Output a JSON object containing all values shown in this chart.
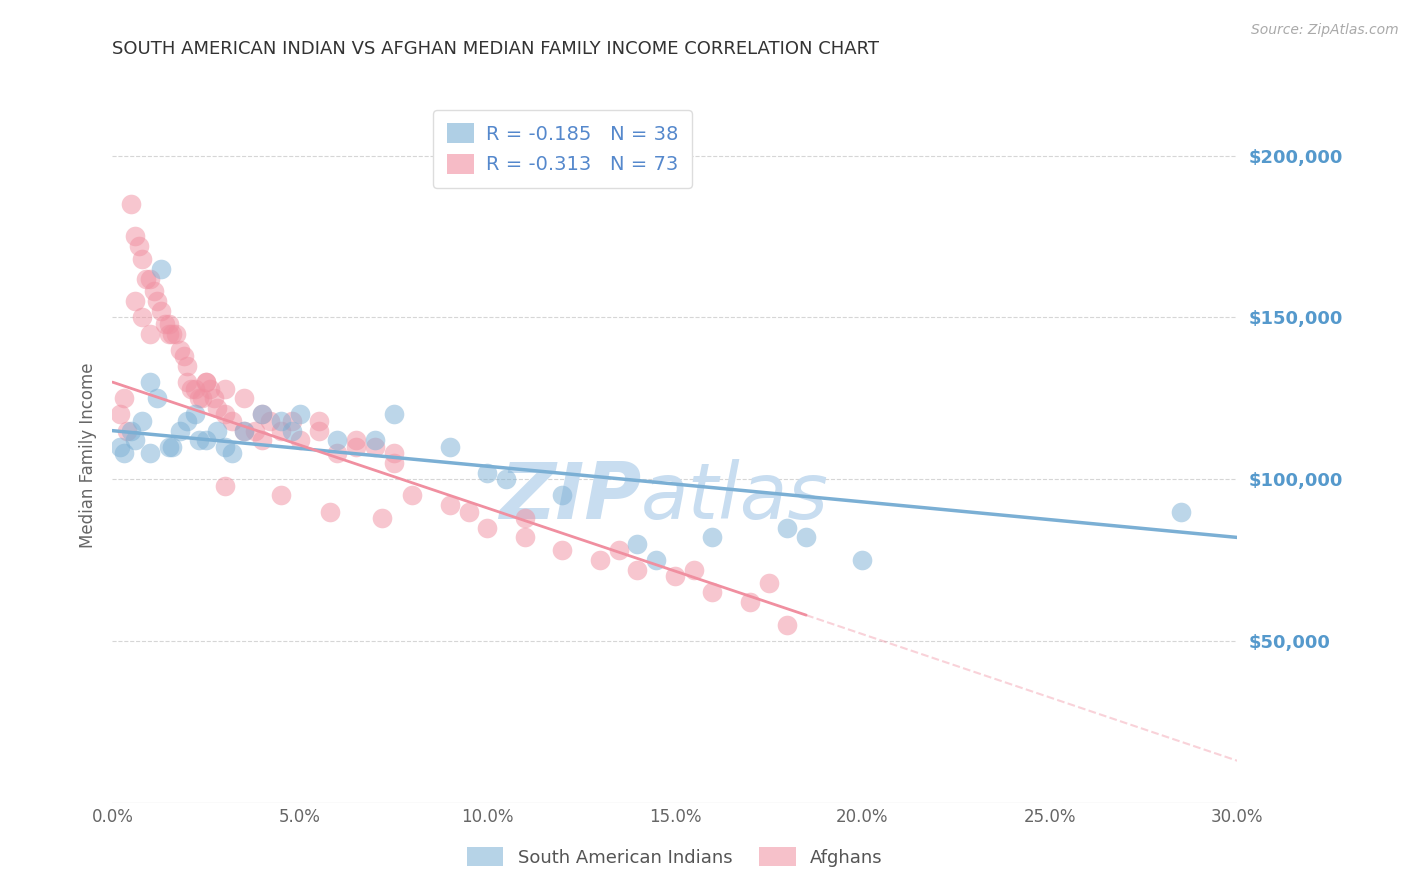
{
  "title": "SOUTH AMERICAN INDIAN VS AFGHAN MEDIAN FAMILY INCOME CORRELATION CHART",
  "source": "Source: ZipAtlas.com",
  "ylabel": "Median Family Income",
  "xlabel_ticks": [
    "0.0%",
    "5.0%",
    "10.0%",
    "15.0%",
    "20.0%",
    "25.0%",
    "30.0%"
  ],
  "xlabel_vals": [
    0.0,
    5.0,
    10.0,
    15.0,
    20.0,
    25.0,
    30.0
  ],
  "xmin": 0.0,
  "xmax": 30.0,
  "ymin": 0,
  "ymax": 215000,
  "yticks": [
    50000,
    100000,
    150000,
    200000
  ],
  "ytick_labels": [
    "$50,000",
    "$100,000",
    "$150,000",
    "$200,000"
  ],
  "grid_color": "#cccccc",
  "bg_color": "#ffffff",
  "blue_color": "#7bafd4",
  "pink_color": "#f08fa0",
  "blue_label": "South American Indians",
  "pink_label": "Afghans",
  "blue_R": "-0.185",
  "blue_N": "38",
  "pink_R": "-0.313",
  "pink_N": "73",
  "legend_text_color": "#5588cc",
  "watermark_zip": "ZIP",
  "watermark_atlas": "atlas",
  "watermark_color": "#c8ddf0",
  "title_color": "#333333",
  "right_tick_color": "#5599cc",
  "blue_scatter_x": [
    0.2,
    0.3,
    0.5,
    0.6,
    0.8,
    1.0,
    1.2,
    1.3,
    1.5,
    1.8,
    2.0,
    2.2,
    2.5,
    2.8,
    3.0,
    3.5,
    4.0,
    4.5,
    5.0,
    6.0,
    7.5,
    9.0,
    10.5,
    12.0,
    14.0,
    16.0,
    18.0,
    20.0,
    28.5,
    1.0,
    1.6,
    2.3,
    3.2,
    4.8,
    7.0,
    10.0,
    14.5,
    18.5
  ],
  "blue_scatter_y": [
    110000,
    108000,
    115000,
    112000,
    118000,
    130000,
    125000,
    165000,
    110000,
    115000,
    118000,
    120000,
    112000,
    115000,
    110000,
    115000,
    120000,
    118000,
    120000,
    112000,
    120000,
    110000,
    100000,
    95000,
    80000,
    82000,
    85000,
    75000,
    90000,
    108000,
    110000,
    112000,
    108000,
    115000,
    112000,
    102000,
    75000,
    82000
  ],
  "pink_scatter_x": [
    0.2,
    0.3,
    0.4,
    0.5,
    0.6,
    0.7,
    0.8,
    0.9,
    1.0,
    1.1,
    1.2,
    1.3,
    1.4,
    1.5,
    1.6,
    1.7,
    1.8,
    1.9,
    2.0,
    2.1,
    2.2,
    2.3,
    2.4,
    2.5,
    2.6,
    2.7,
    2.8,
    3.0,
    3.2,
    3.5,
    3.8,
    4.0,
    4.2,
    4.5,
    5.0,
    5.5,
    6.0,
    6.5,
    7.0,
    7.5,
    8.0,
    9.0,
    10.0,
    11.0,
    12.0,
    13.0,
    14.0,
    15.0,
    16.0,
    17.0,
    18.0,
    0.6,
    0.8,
    1.0,
    1.5,
    2.0,
    2.5,
    3.0,
    3.5,
    4.0,
    4.8,
    5.5,
    6.5,
    7.5,
    9.5,
    11.0,
    13.5,
    15.5,
    17.5,
    3.0,
    4.5,
    5.8,
    7.2
  ],
  "pink_scatter_y": [
    120000,
    125000,
    115000,
    185000,
    175000,
    172000,
    168000,
    162000,
    162000,
    158000,
    155000,
    152000,
    148000,
    148000,
    145000,
    145000,
    140000,
    138000,
    130000,
    128000,
    128000,
    125000,
    125000,
    130000,
    128000,
    125000,
    122000,
    120000,
    118000,
    115000,
    115000,
    112000,
    118000,
    115000,
    112000,
    115000,
    108000,
    110000,
    110000,
    105000,
    95000,
    92000,
    85000,
    82000,
    78000,
    75000,
    72000,
    70000,
    65000,
    62000,
    55000,
    155000,
    150000,
    145000,
    145000,
    135000,
    130000,
    128000,
    125000,
    120000,
    118000,
    118000,
    112000,
    108000,
    90000,
    88000,
    78000,
    72000,
    68000,
    98000,
    95000,
    90000,
    88000
  ],
  "blue_line_x0": 0.0,
  "blue_line_x1": 30.0,
  "blue_line_y0": 115000,
  "blue_line_y1": 82000,
  "pink_line_x0": 0.0,
  "pink_line_x1": 18.5,
  "pink_line_y0": 130000,
  "pink_line_y1": 58000,
  "pink_dashed_x0": 18.5,
  "pink_dashed_x1": 30.0,
  "pink_dashed_y0": 58000,
  "pink_dashed_y1": 13000
}
